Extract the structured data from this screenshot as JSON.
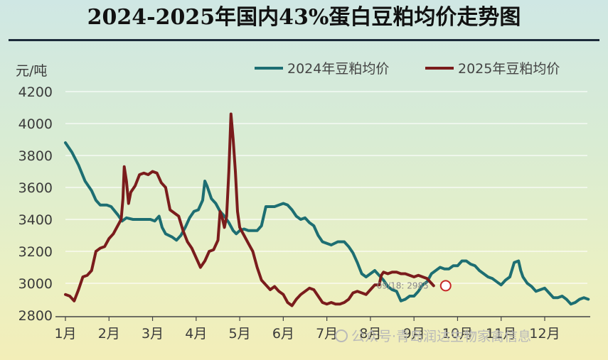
{
  "chart_data": {
    "type": "line",
    "title": "2024-2025年国内43%蛋白豆粕均价走势图",
    "ylabel": "元/吨",
    "xlabel": "",
    "ylim": [
      2800,
      4200
    ],
    "yticks": [
      2800,
      3000,
      3200,
      3400,
      3600,
      3800,
      4000,
      4200
    ],
    "categories": [
      "1月",
      "2月",
      "3月",
      "4月",
      "5月",
      "6月",
      "7月",
      "8月",
      "9月",
      "10月",
      "11月",
      "12月"
    ],
    "grid": true,
    "legend": "top-right",
    "series": [
      {
        "name": "2024年豆粕均价",
        "color": "#1d6e72",
        "points": [
          [
            0.0,
            3880
          ],
          [
            0.15,
            3820
          ],
          [
            0.3,
            3740
          ],
          [
            0.45,
            3640
          ],
          [
            0.6,
            3580
          ],
          [
            0.7,
            3520
          ],
          [
            0.8,
            3490
          ],
          [
            0.95,
            3490
          ],
          [
            1.05,
            3480
          ],
          [
            1.2,
            3430
          ],
          [
            1.3,
            3390
          ],
          [
            1.4,
            3410
          ],
          [
            1.55,
            3400
          ],
          [
            1.7,
            3400
          ],
          [
            1.85,
            3400
          ],
          [
            1.95,
            3400
          ],
          [
            2.05,
            3390
          ],
          [
            2.15,
            3420
          ],
          [
            2.22,
            3350
          ],
          [
            2.3,
            3310
          ],
          [
            2.45,
            3290
          ],
          [
            2.55,
            3270
          ],
          [
            2.65,
            3300
          ],
          [
            2.75,
            3350
          ],
          [
            2.85,
            3410
          ],
          [
            2.95,
            3450
          ],
          [
            3.05,
            3460
          ],
          [
            3.15,
            3520
          ],
          [
            3.2,
            3640
          ],
          [
            3.25,
            3610
          ],
          [
            3.35,
            3530
          ],
          [
            3.45,
            3500
          ],
          [
            3.55,
            3450
          ],
          [
            3.65,
            3420
          ],
          [
            3.75,
            3380
          ],
          [
            3.85,
            3330
          ],
          [
            3.92,
            3310
          ],
          [
            4.0,
            3330
          ],
          [
            4.1,
            3340
          ],
          [
            4.2,
            3330
          ],
          [
            4.3,
            3330
          ],
          [
            4.4,
            3330
          ],
          [
            4.5,
            3360
          ],
          [
            4.55,
            3420
          ],
          [
            4.6,
            3480
          ],
          [
            4.7,
            3480
          ],
          [
            4.8,
            3480
          ],
          [
            4.9,
            3490
          ],
          [
            5.0,
            3500
          ],
          [
            5.1,
            3490
          ],
          [
            5.2,
            3460
          ],
          [
            5.3,
            3420
          ],
          [
            5.4,
            3400
          ],
          [
            5.5,
            3410
          ],
          [
            5.6,
            3380
          ],
          [
            5.7,
            3360
          ],
          [
            5.8,
            3300
          ],
          [
            5.9,
            3260
          ],
          [
            6.0,
            3250
          ],
          [
            6.1,
            3240
          ],
          [
            6.25,
            3260
          ],
          [
            6.4,
            3260
          ],
          [
            6.5,
            3230
          ],
          [
            6.6,
            3190
          ],
          [
            6.7,
            3130
          ],
          [
            6.8,
            3060
          ],
          [
            6.9,
            3040
          ],
          [
            7.0,
            3060
          ],
          [
            7.1,
            3080
          ],
          [
            7.2,
            3050
          ],
          [
            7.3,
            3020
          ],
          [
            7.4,
            2980
          ],
          [
            7.5,
            2960
          ],
          [
            7.6,
            2950
          ],
          [
            7.7,
            2890
          ],
          [
            7.8,
            2900
          ],
          [
            7.9,
            2920
          ],
          [
            8.0,
            2920
          ],
          [
            8.1,
            2950
          ],
          [
            8.2,
            2990
          ],
          [
            8.3,
            3010
          ],
          [
            8.4,
            3060
          ],
          [
            8.5,
            3080
          ],
          [
            8.6,
            3100
          ],
          [
            8.7,
            3090
          ],
          [
            8.8,
            3090
          ],
          [
            8.9,
            3110
          ],
          [
            9.0,
            3110
          ],
          [
            9.1,
            3140
          ],
          [
            9.2,
            3140
          ],
          [
            9.3,
            3120
          ],
          [
            9.4,
            3110
          ],
          [
            9.5,
            3080
          ],
          [
            9.6,
            3060
          ],
          [
            9.7,
            3040
          ],
          [
            9.8,
            3030
          ],
          [
            9.9,
            3010
          ],
          [
            10.0,
            2990
          ],
          [
            10.1,
            3020
          ],
          [
            10.2,
            3040
          ],
          [
            10.3,
            3130
          ],
          [
            10.4,
            3140
          ],
          [
            10.45,
            3080
          ],
          [
            10.5,
            3040
          ],
          [
            10.6,
            3000
          ],
          [
            10.7,
            2980
          ],
          [
            10.8,
            2950
          ],
          [
            10.9,
            2960
          ],
          [
            11.0,
            2970
          ],
          [
            11.1,
            2940
          ],
          [
            11.2,
            2910
          ],
          [
            11.3,
            2910
          ],
          [
            11.4,
            2920
          ],
          [
            11.5,
            2900
          ],
          [
            11.6,
            2870
          ],
          [
            11.7,
            2880
          ],
          [
            11.8,
            2900
          ],
          [
            11.9,
            2910
          ],
          [
            12.0,
            2900
          ]
        ]
      },
      {
        "name": "2025年豆粕均价",
        "color": "#7a1c1c",
        "points": [
          [
            0.0,
            2930
          ],
          [
            0.1,
            2920
          ],
          [
            0.2,
            2890
          ],
          [
            0.3,
            2960
          ],
          [
            0.4,
            3040
          ],
          [
            0.5,
            3050
          ],
          [
            0.6,
            3080
          ],
          [
            0.7,
            3200
          ],
          [
            0.8,
            3220
          ],
          [
            0.9,
            3230
          ],
          [
            1.0,
            3280
          ],
          [
            1.1,
            3310
          ],
          [
            1.2,
            3360
          ],
          [
            1.28,
            3400
          ],
          [
            1.32,
            3530
          ],
          [
            1.35,
            3730
          ],
          [
            1.4,
            3640
          ],
          [
            1.45,
            3500
          ],
          [
            1.5,
            3570
          ],
          [
            1.6,
            3610
          ],
          [
            1.7,
            3680
          ],
          [
            1.8,
            3690
          ],
          [
            1.9,
            3680
          ],
          [
            2.0,
            3700
          ],
          [
            2.1,
            3690
          ],
          [
            2.2,
            3630
          ],
          [
            2.3,
            3600
          ],
          [
            2.4,
            3460
          ],
          [
            2.5,
            3440
          ],
          [
            2.6,
            3420
          ],
          [
            2.7,
            3330
          ],
          [
            2.8,
            3260
          ],
          [
            2.9,
            3220
          ],
          [
            3.0,
            3160
          ],
          [
            3.1,
            3100
          ],
          [
            3.2,
            3140
          ],
          [
            3.3,
            3200
          ],
          [
            3.4,
            3210
          ],
          [
            3.5,
            3270
          ],
          [
            3.55,
            3450
          ],
          [
            3.6,
            3410
          ],
          [
            3.65,
            3350
          ],
          [
            3.7,
            3420
          ],
          [
            3.75,
            3700
          ],
          [
            3.8,
            4060
          ],
          [
            3.85,
            3900
          ],
          [
            3.9,
            3700
          ],
          [
            3.95,
            3450
          ],
          [
            4.0,
            3350
          ],
          [
            4.1,
            3300
          ],
          [
            4.2,
            3250
          ],
          [
            4.3,
            3200
          ],
          [
            4.4,
            3100
          ],
          [
            4.5,
            3020
          ],
          [
            4.6,
            2990
          ],
          [
            4.7,
            2960
          ],
          [
            4.8,
            2980
          ],
          [
            4.9,
            2950
          ],
          [
            5.0,
            2930
          ],
          [
            5.1,
            2880
          ],
          [
            5.2,
            2860
          ],
          [
            5.3,
            2900
          ],
          [
            5.4,
            2930
          ],
          [
            5.5,
            2950
          ],
          [
            5.6,
            2970
          ],
          [
            5.7,
            2960
          ],
          [
            5.8,
            2920
          ],
          [
            5.9,
            2880
          ],
          [
            6.0,
            2870
          ],
          [
            6.1,
            2880
          ],
          [
            6.2,
            2870
          ],
          [
            6.3,
            2870
          ],
          [
            6.4,
            2880
          ],
          [
            6.5,
            2900
          ],
          [
            6.6,
            2940
          ],
          [
            6.7,
            2950
          ],
          [
            6.8,
            2940
          ],
          [
            6.9,
            2930
          ],
          [
            7.0,
            2960
          ],
          [
            7.1,
            2990
          ],
          [
            7.2,
            2990
          ],
          [
            7.25,
            3050
          ],
          [
            7.3,
            3070
          ],
          [
            7.4,
            3060
          ],
          [
            7.5,
            3070
          ],
          [
            7.6,
            3070
          ],
          [
            7.7,
            3060
          ],
          [
            7.8,
            3060
          ],
          [
            7.9,
            3050
          ],
          [
            8.0,
            3040
          ],
          [
            8.1,
            3050
          ],
          [
            8.2,
            3040
          ],
          [
            8.3,
            3030
          ],
          [
            8.4,
            3000
          ],
          [
            8.45,
            2985
          ]
        ]
      }
    ],
    "annotation": {
      "text": "09/18: 2985",
      "x": 8.45,
      "y": 2985
    },
    "watermark": "公众号·青岛润达生物家禽信息"
  }
}
